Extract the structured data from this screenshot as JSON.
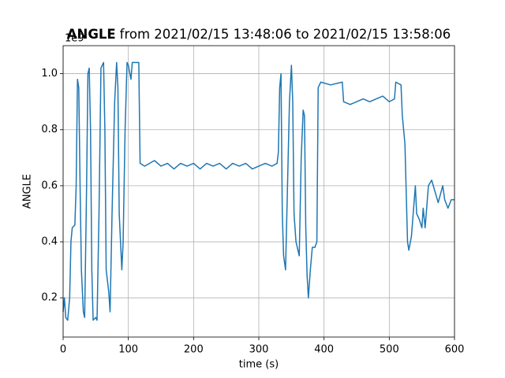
{
  "chart_data": {
    "type": "line",
    "title_bold": "ANGLE",
    "title": "from 2021/02/15 13:48:06 to 2021/02/15 13:58:06",
    "offset_label": "1e9",
    "xlabel": "time (s)",
    "ylabel": "ANGLE",
    "color": "#1f77b4",
    "grid": true,
    "xlim": [
      0,
      600
    ],
    "ylim": [
      0.06,
      1.1
    ],
    "xticks": [
      0,
      100,
      200,
      300,
      400,
      500,
      600
    ],
    "yticks": [
      0.2,
      0.4,
      0.6,
      0.8,
      {
        "value": 1,
        "label": "1.0"
      }
    ],
    "x": [
      0,
      2,
      4,
      7,
      10,
      12,
      14,
      18,
      20,
      22,
      24,
      26,
      28,
      31,
      33,
      36,
      38,
      40,
      42,
      44,
      46,
      50,
      52,
      55,
      58,
      62,
      64,
      66,
      70,
      72,
      75,
      79,
      82,
      84,
      86,
      88,
      90,
      92,
      95,
      98,
      100,
      104,
      106,
      112,
      116,
      118,
      125,
      140,
      150,
      160,
      170,
      180,
      190,
      200,
      210,
      220,
      230,
      240,
      250,
      260,
      270,
      280,
      290,
      300,
      310,
      320,
      328,
      330,
      332,
      334,
      336,
      338,
      341,
      344,
      347,
      350,
      352,
      354,
      357,
      362,
      365,
      368,
      370,
      372,
      374,
      376,
      379,
      382,
      386,
      389,
      391,
      395,
      410,
      428,
      430,
      440,
      450,
      460,
      470,
      480,
      490,
      500,
      508,
      510,
      518,
      520,
      524,
      528,
      530,
      534,
      536,
      540,
      542,
      546,
      550,
      552,
      555,
      560,
      565,
      570,
      575,
      582,
      585,
      590,
      595,
      600
    ],
    "values": [
      0.15,
      0.2,
      0.13,
      0.12,
      0.2,
      0.4,
      0.45,
      0.46,
      0.6,
      0.98,
      0.95,
      0.6,
      0.3,
      0.15,
      0.13,
      0.6,
      1.0,
      1.02,
      0.8,
      0.3,
      0.12,
      0.13,
      0.12,
      0.5,
      1.02,
      1.04,
      0.8,
      0.3,
      0.22,
      0.15,
      0.5,
      0.9,
      1.04,
      0.95,
      0.5,
      0.4,
      0.3,
      0.4,
      0.8,
      1.04,
      1.03,
      0.98,
      1.04,
      1.04,
      1.04,
      0.68,
      0.67,
      0.69,
      0.67,
      0.68,
      0.66,
      0.68,
      0.67,
      0.68,
      0.66,
      0.68,
      0.67,
      0.68,
      0.66,
      0.68,
      0.67,
      0.68,
      0.66,
      0.67,
      0.68,
      0.67,
      0.68,
      0.72,
      0.95,
      1.0,
      0.5,
      0.35,
      0.3,
      0.6,
      0.9,
      1.03,
      0.9,
      0.5,
      0.4,
      0.35,
      0.7,
      0.87,
      0.85,
      0.45,
      0.28,
      0.2,
      0.3,
      0.38,
      0.38,
      0.4,
      0.95,
      0.97,
      0.96,
      0.97,
      0.9,
      0.89,
      0.9,
      0.91,
      0.9,
      0.91,
      0.92,
      0.9,
      0.91,
      0.97,
      0.96,
      0.85,
      0.75,
      0.4,
      0.37,
      0.42,
      0.48,
      0.6,
      0.5,
      0.48,
      0.45,
      0.52,
      0.45,
      0.6,
      0.62,
      0.58,
      0.54,
      0.6,
      0.55,
      0.52,
      0.55,
      0.55
    ]
  }
}
